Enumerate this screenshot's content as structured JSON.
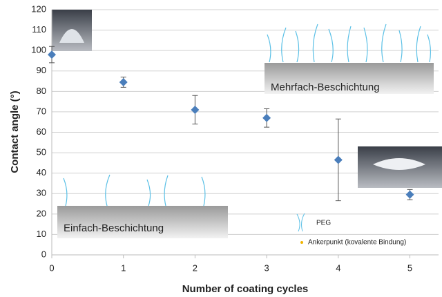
{
  "chart_data": {
    "type": "scatter",
    "y_label": "Contact angle (°)",
    "x_label": "Number of coating cycles",
    "x": [
      0,
      1,
      2,
      3,
      4,
      5
    ],
    "values": [
      98,
      84.5,
      71,
      67,
      46.5,
      29.5
    ],
    "errors": [
      4,
      2.5,
      7,
      4.5,
      20,
      2.5
    ],
    "color": "#4a7ebb",
    "xlim": [
      0,
      5.4
    ],
    "xticks": [
      0,
      1,
      2,
      3,
      4,
      5
    ],
    "ylim": [
      0,
      120
    ],
    "yticks": [
      0,
      10,
      20,
      30,
      40,
      50,
      60,
      70,
      80,
      90,
      100,
      110,
      120
    ],
    "grid": true,
    "annotations": [
      "Mehrfach-Beschichtung",
      "Einfach-Beschichtung",
      "PEG",
      "Ankerpunkt (kovalente Bindung)"
    ]
  }
}
